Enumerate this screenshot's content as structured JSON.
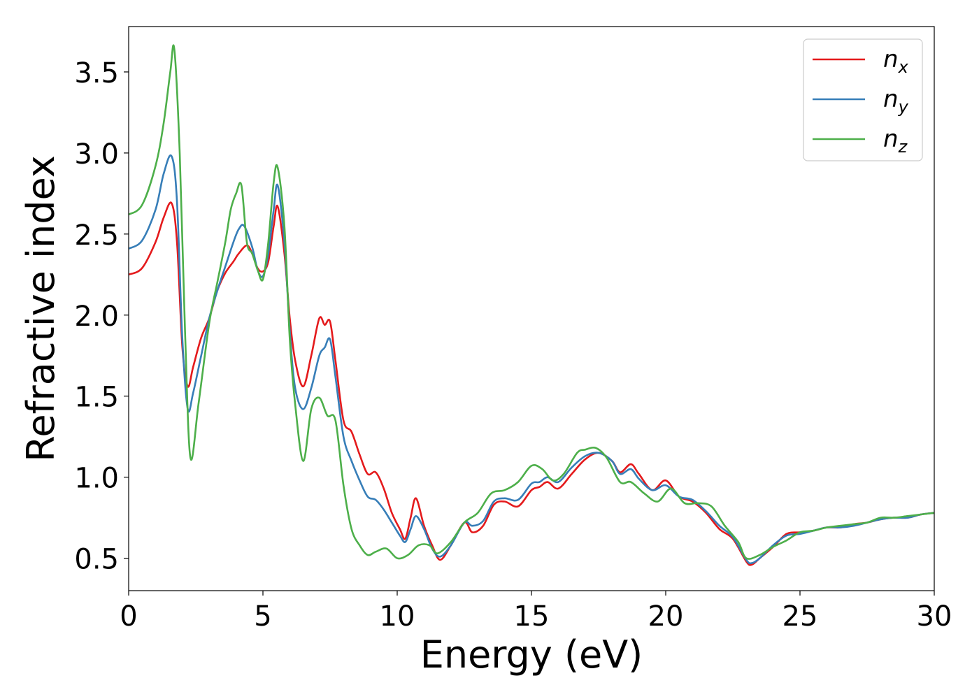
{
  "chart_data": {
    "type": "line",
    "xlabel": "Energy (eV)",
    "ylabel": "Refractive index",
    "xlim": [
      0,
      30
    ],
    "ylim": [
      0.3,
      3.78
    ],
    "xticks": [
      0,
      5,
      10,
      15,
      20,
      25,
      30
    ],
    "xtick_labels": [
      "0",
      "5",
      "10",
      "15",
      "20",
      "25",
      "30"
    ],
    "yticks": [
      0.5,
      1.0,
      1.5,
      2.0,
      2.5,
      3.0,
      3.5
    ],
    "ytick_labels": [
      "0.5",
      "1.0",
      "1.5",
      "2.0",
      "2.5",
      "3.0",
      "3.5"
    ],
    "grid": false,
    "legend_position": "top-right",
    "series": [
      {
        "name": "n",
        "subscript": "x",
        "color": "#e41a1c",
        "x": [
          0,
          0.5,
          1.0,
          1.3,
          1.6,
          1.8,
          2.0,
          2.2,
          2.4,
          2.7,
          3.0,
          3.3,
          3.6,
          3.9,
          4.1,
          4.4,
          4.6,
          4.8,
          5.0,
          5.2,
          5.4,
          5.55,
          5.8,
          6.0,
          6.2,
          6.5,
          6.8,
          7.1,
          7.3,
          7.5,
          7.7,
          8.0,
          8.3,
          8.6,
          8.9,
          9.2,
          9.5,
          9.8,
          10.1,
          10.3,
          10.5,
          10.7,
          11.0,
          11.3,
          11.6,
          12.0,
          12.5,
          12.8,
          13.2,
          13.6,
          14.0,
          14.5,
          15.0,
          15.3,
          15.6,
          16.0,
          16.5,
          17.0,
          17.5,
          18.0,
          18.3,
          18.7,
          19.0,
          19.5,
          20.0,
          20.5,
          21.0,
          21.5,
          22.0,
          22.5,
          23.0,
          23.2,
          23.5,
          24.0,
          24.5,
          25.0,
          25.5,
          26.0,
          26.5,
          27.0,
          27.5,
          28.0,
          28.5,
          29.0,
          29.5,
          30.0
        ],
        "y": [
          2.25,
          2.29,
          2.45,
          2.6,
          2.69,
          2.45,
          1.8,
          1.56,
          1.68,
          1.86,
          1.98,
          2.15,
          2.26,
          2.33,
          2.38,
          2.43,
          2.38,
          2.29,
          2.27,
          2.33,
          2.55,
          2.67,
          2.38,
          1.98,
          1.72,
          1.56,
          1.75,
          1.98,
          1.94,
          1.96,
          1.72,
          1.35,
          1.28,
          1.14,
          1.02,
          1.03,
          0.93,
          0.78,
          0.68,
          0.62,
          0.75,
          0.87,
          0.7,
          0.58,
          0.49,
          0.58,
          0.72,
          0.66,
          0.7,
          0.83,
          0.85,
          0.82,
          0.92,
          0.94,
          0.97,
          0.93,
          1.02,
          1.11,
          1.15,
          1.1,
          1.03,
          1.08,
          1.02,
          0.92,
          0.98,
          0.88,
          0.85,
          0.78,
          0.68,
          0.62,
          0.48,
          0.46,
          0.5,
          0.57,
          0.65,
          0.66,
          0.67,
          0.69,
          0.69,
          0.71,
          0.72,
          0.74,
          0.75,
          0.75,
          0.77,
          0.78
        ]
      },
      {
        "name": "n",
        "subscript": "y",
        "color": "#377eb8",
        "x": [
          0,
          0.5,
          1.0,
          1.3,
          1.6,
          1.8,
          2.0,
          2.2,
          2.4,
          2.7,
          3.0,
          3.3,
          3.6,
          3.9,
          4.1,
          4.3,
          4.6,
          4.8,
          5.0,
          5.2,
          5.4,
          5.55,
          5.8,
          6.0,
          6.2,
          6.5,
          6.8,
          7.1,
          7.3,
          7.5,
          7.7,
          8.0,
          8.3,
          8.6,
          8.9,
          9.2,
          9.5,
          9.8,
          10.1,
          10.3,
          10.5,
          10.7,
          11.0,
          11.3,
          11.6,
          12.0,
          12.5,
          12.8,
          13.2,
          13.6,
          14.0,
          14.5,
          15.0,
          15.3,
          15.6,
          16.0,
          16.5,
          17.0,
          17.5,
          18.0,
          18.3,
          18.7,
          19.0,
          19.5,
          20.0,
          20.5,
          21.0,
          21.5,
          22.0,
          22.5,
          23.0,
          23.2,
          23.5,
          24.0,
          24.5,
          25.0,
          25.5,
          26.0,
          26.5,
          27.0,
          27.5,
          28.0,
          28.5,
          29.0,
          29.5,
          30.0
        ],
        "y": [
          2.41,
          2.46,
          2.65,
          2.87,
          2.98,
          2.7,
          1.85,
          1.42,
          1.52,
          1.75,
          1.98,
          2.15,
          2.3,
          2.45,
          2.53,
          2.55,
          2.42,
          2.28,
          2.24,
          2.38,
          2.65,
          2.8,
          2.45,
          1.9,
          1.55,
          1.42,
          1.55,
          1.75,
          1.8,
          1.85,
          1.62,
          1.25,
          1.1,
          0.98,
          0.88,
          0.86,
          0.8,
          0.72,
          0.64,
          0.6,
          0.68,
          0.76,
          0.68,
          0.56,
          0.51,
          0.58,
          0.72,
          0.7,
          0.73,
          0.85,
          0.87,
          0.86,
          0.96,
          0.97,
          1.0,
          0.97,
          1.06,
          1.13,
          1.15,
          1.1,
          1.02,
          1.05,
          0.99,
          0.92,
          0.95,
          0.88,
          0.86,
          0.79,
          0.7,
          0.63,
          0.49,
          0.47,
          0.5,
          0.58,
          0.64,
          0.65,
          0.67,
          0.69,
          0.69,
          0.7,
          0.72,
          0.74,
          0.75,
          0.75,
          0.77,
          0.78
        ]
      },
      {
        "name": "n",
        "subscript": "z",
        "color": "#4daf4a",
        "x": [
          0,
          0.5,
          1.0,
          1.3,
          1.55,
          1.7,
          1.9,
          2.1,
          2.3,
          2.6,
          3.0,
          3.3,
          3.6,
          3.8,
          4.0,
          4.2,
          4.4,
          4.6,
          4.8,
          5.0,
          5.2,
          5.4,
          5.55,
          5.8,
          6.0,
          6.2,
          6.5,
          6.8,
          7.1,
          7.4,
          7.7,
          8.0,
          8.3,
          8.6,
          8.9,
          9.2,
          9.6,
          10.0,
          10.4,
          10.8,
          11.2,
          11.5,
          12.0,
          12.5,
          13.0,
          13.5,
          14.0,
          14.5,
          15.0,
          15.4,
          15.8,
          16.2,
          16.7,
          17.0,
          17.4,
          17.8,
          18.3,
          18.7,
          19.2,
          19.7,
          20.2,
          20.7,
          21.2,
          21.7,
          22.2,
          22.7,
          23.0,
          23.5,
          24.0,
          24.5,
          25.0,
          25.5,
          26.0,
          26.5,
          27.0,
          27.5,
          28.0,
          28.5,
          29.0,
          29.5,
          30.0
        ],
        "y": [
          2.62,
          2.68,
          2.92,
          3.18,
          3.5,
          3.64,
          3.0,
          1.9,
          1.12,
          1.45,
          1.95,
          2.2,
          2.45,
          2.65,
          2.75,
          2.8,
          2.45,
          2.38,
          2.28,
          2.22,
          2.45,
          2.82,
          2.91,
          2.55,
          1.85,
          1.45,
          1.1,
          1.42,
          1.49,
          1.38,
          1.35,
          0.95,
          0.68,
          0.58,
          0.52,
          0.54,
          0.56,
          0.5,
          0.52,
          0.58,
          0.58,
          0.53,
          0.6,
          0.72,
          0.78,
          0.9,
          0.92,
          0.97,
          1.07,
          1.05,
          0.98,
          1.02,
          1.15,
          1.17,
          1.18,
          1.12,
          0.97,
          0.97,
          0.9,
          0.85,
          0.93,
          0.84,
          0.84,
          0.82,
          0.7,
          0.6,
          0.5,
          0.52,
          0.57,
          0.61,
          0.66,
          0.67,
          0.69,
          0.7,
          0.71,
          0.72,
          0.75,
          0.75,
          0.76,
          0.77,
          0.78
        ]
      }
    ]
  }
}
